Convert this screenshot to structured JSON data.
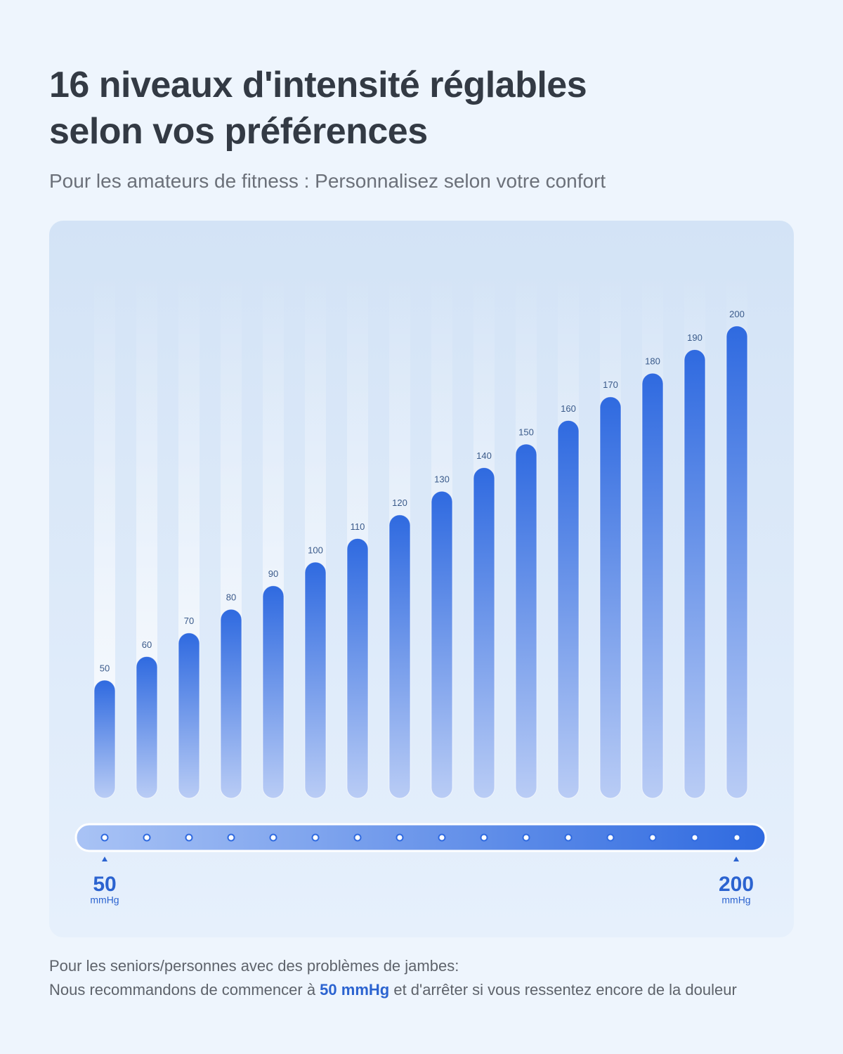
{
  "header": {
    "title": "16 niveaux d'intensité réglables selon vos préférences",
    "subtitle": "Pour les amateurs de fitness : Personnalisez selon votre confort"
  },
  "chart_data": {
    "type": "bar",
    "values": [
      50,
      60,
      70,
      80,
      90,
      100,
      110,
      120,
      130,
      140,
      150,
      160,
      170,
      180,
      190,
      200
    ],
    "color": "#2f6ae0",
    "ylim": [
      0,
      222
    ],
    "range_labels": [
      {
        "value": "50",
        "unit": "mmHg"
      },
      {
        "value": "200",
        "unit": "mmHg"
      }
    ]
  },
  "footer": {
    "line1": "Pour les seniors/personnes avec des problèmes de jambes:",
    "line2": [
      "Nous recommandons de commencer à ",
      "50 mmHg",
      " et d'arrêter si vous ressentez encore de la douleur"
    ]
  }
}
